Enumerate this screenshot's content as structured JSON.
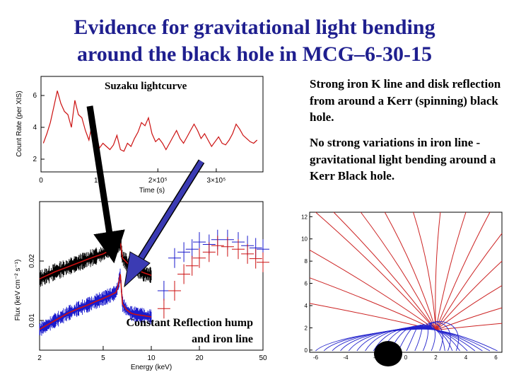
{
  "title": {
    "line1": "Evidence for gravitational light bending",
    "line2": "around the black hole in MCG–6-30-15"
  },
  "text_blocks": [
    "Strong iron K line and disk reflection from around a Kerr (spinning) black hole.",
    "No strong variations in iron line - gravitational light bending around a Kerr Black hole."
  ],
  "labels": {
    "lightcurve": "Suzaku lightcurve",
    "spectrum_line1": "Constant Reflection hump",
    "spectrum_line2": "and iron line"
  },
  "colors": {
    "title": "#1f1f8f",
    "arrow_black": "#000000",
    "arrow_blue": "#3b3bb3",
    "lightcurve": "#cc1111",
    "spectrum_red": "#cc1111",
    "spectrum_blue": "#1a1acc",
    "rays_red": "#cc2222",
    "rays_blue": "#2222cc"
  },
  "chart_data": [
    {
      "type": "line",
      "xlabel": "Time (s)",
      "ylabel": "Count Rate (per XIS)",
      "x_ticks": [
        "0",
        "10⁵",
        "2×10⁵",
        "3×10⁵"
      ],
      "y_ticks": [
        "2",
        "4",
        "6"
      ],
      "xlim": [
        0,
        380000
      ],
      "ylim": [
        1.2,
        7.2
      ],
      "series": [
        {
          "x": [
            4000,
            10000,
            16000,
            22000,
            28000,
            34000,
            40000,
            46000,
            52000,
            58000,
            64000,
            70000,
            76000,
            82000,
            88000,
            94000,
            100000,
            106000,
            112000,
            118000,
            124000,
            130000,
            136000,
            142000,
            148000,
            154000,
            160000,
            166000,
            172000,
            178000,
            184000,
            190000,
            196000,
            202000,
            208000,
            214000,
            220000,
            226000,
            232000,
            238000,
            244000,
            250000,
            256000,
            262000,
            268000,
            274000,
            280000,
            286000,
            292000,
            298000,
            304000,
            310000,
            316000,
            322000,
            328000,
            334000,
            340000,
            346000,
            352000,
            358000,
            364000,
            370000
          ],
          "y": [
            3.0,
            3.6,
            4.3,
            5.3,
            6.3,
            5.5,
            5.0,
            4.8,
            4.0,
            5.7,
            4.8,
            4.6,
            3.8,
            3.2,
            4.3,
            3.6,
            2.7,
            3.0,
            2.8,
            2.6,
            2.9,
            3.5,
            2.6,
            2.5,
            3.0,
            2.8,
            3.3,
            3.7,
            4.3,
            4.1,
            4.6,
            3.6,
            3.1,
            3.3,
            3.0,
            2.6,
            3.0,
            3.4,
            3.8,
            3.3,
            3.0,
            3.4,
            3.8,
            4.2,
            3.8,
            3.3,
            3.6,
            3.2,
            2.8,
            3.1,
            3.4,
            3.0,
            2.9,
            3.2,
            3.6,
            4.2,
            3.9,
            3.5,
            3.3,
            3.1,
            3.0,
            3.2
          ]
        }
      ]
    },
    {
      "type": "line",
      "xlabel": "Energy (keV)",
      "ylabel": "Flux (keV cm⁻² s⁻¹)",
      "x_ticks": [
        "2",
        "5",
        "10",
        "20",
        "50"
      ],
      "y_ticks": [
        "0.01",
        "0.02"
      ],
      "xlim": [
        2,
        50
      ],
      "ylim": [
        0.005,
        0.03
      ],
      "series": [
        {
          "x": [
            2.0,
            2.5,
            3.0,
            3.5,
            4.0,
            4.5,
            5.0,
            5.5,
            6.0,
            6.2,
            6.4,
            6.6,
            7.0,
            7.5,
            8.0,
            9.0,
            10.0
          ],
          "y": [
            0.017,
            0.0182,
            0.019,
            0.0197,
            0.0203,
            0.0208,
            0.0212,
            0.0218,
            0.0222,
            0.0226,
            0.0232,
            0.0205,
            0.0198,
            0.019,
            0.0186,
            0.018,
            0.0176
          ]
        },
        {
          "x": [
            2.0,
            2.5,
            3.0,
            3.5,
            4.0,
            4.5,
            5.0,
            5.5,
            6.0,
            6.2,
            6.4,
            6.6,
            7.0,
            7.5,
            8.0,
            9.0,
            10.0
          ],
          "y": [
            0.0085,
            0.01,
            0.0112,
            0.012,
            0.0126,
            0.0132,
            0.0137,
            0.0142,
            0.0147,
            0.0158,
            0.0178,
            0.0128,
            0.0118,
            0.0112,
            0.011,
            0.0108,
            0.0106
          ]
        },
        {
          "x": [
            12,
            14,
            16,
            18,
            20,
            23,
            26,
            30,
            35,
            40,
            45,
            50
          ],
          "y": [
            0.015,
            0.0205,
            0.0215,
            0.022,
            0.0232,
            0.0228,
            0.0236,
            0.0236,
            0.0232,
            0.0226,
            0.0222,
            0.022
          ]
        },
        {
          "x": [
            12,
            14,
            16,
            18,
            20,
            23,
            26,
            30,
            35,
            40,
            45,
            50
          ],
          "y": [
            0.012,
            0.015,
            0.0178,
            0.0192,
            0.0205,
            0.0215,
            0.0226,
            0.0224,
            0.022,
            0.0212,
            0.0204,
            0.0198
          ]
        }
      ]
    },
    {
      "type": "line",
      "y_ticks": [
        "0",
        "2",
        "4",
        "6",
        "8",
        "10",
        "12"
      ],
      "x_ticks": [
        "-6",
        "-4",
        "-2",
        "0",
        "2",
        "4",
        "6"
      ],
      "xlim": [
        -6.4,
        6.4
      ],
      "ylim": [
        -0.2,
        12.4
      ],
      "series": []
    }
  ]
}
